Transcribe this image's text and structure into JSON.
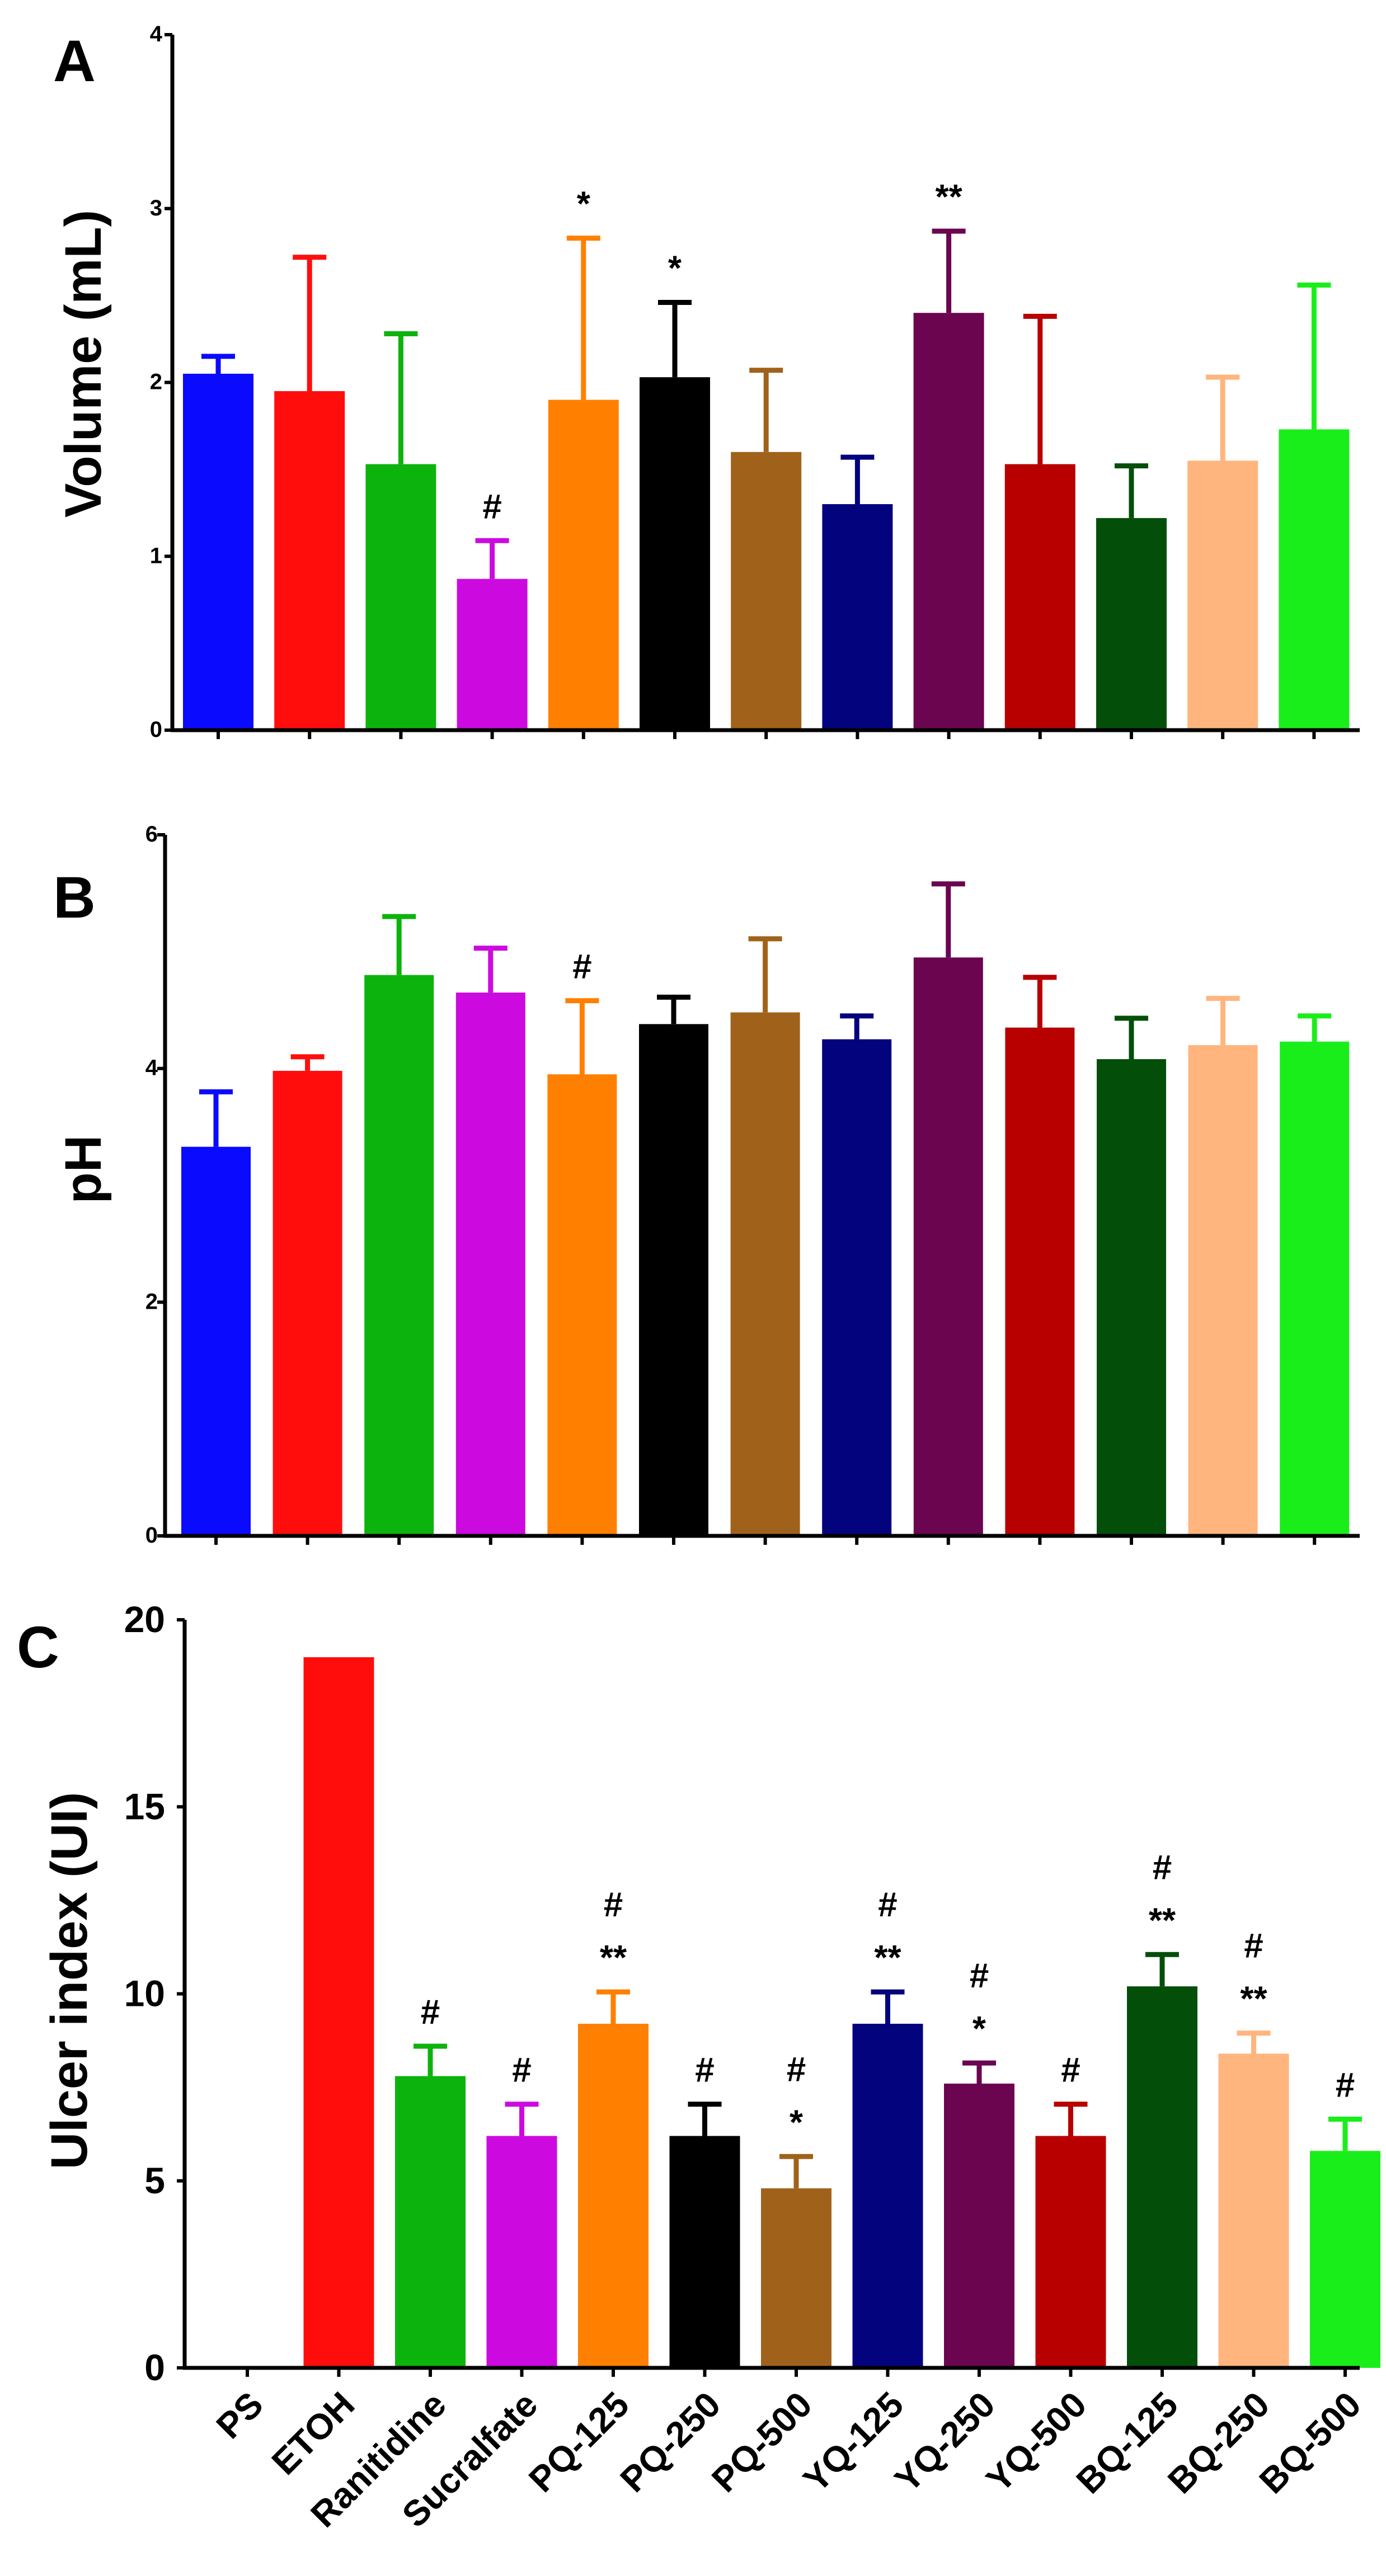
{
  "chart_data": [
    {
      "panel": "A",
      "type": "bar",
      "ylabel": "Volume (mL)",
      "ylim": [
        0,
        4
      ],
      "yticks": [
        "0",
        "1",
        "2",
        "3",
        "4"
      ],
      "categories": [
        "PS",
        "ETOH",
        "Ranitidine",
        "Sucralfate",
        "PQ-125",
        "PQ-250",
        "PQ-500",
        "YQ-125",
        "YQ-250",
        "YQ-500",
        "BQ-125",
        "BQ-250",
        "BQ-500"
      ],
      "values": [
        2.05,
        1.95,
        1.53,
        0.87,
        1.9,
        2.03,
        1.6,
        1.3,
        2.4,
        1.53,
        1.22,
        1.55,
        1.73
      ],
      "errors": [
        0.1,
        0.77,
        0.75,
        0.22,
        0.93,
        0.43,
        0.47,
        0.27,
        0.47,
        0.85,
        0.3,
        0.48,
        0.83
      ],
      "annotations": [
        {
          "category": "Sucralfate",
          "marks": [
            "#"
          ]
        },
        {
          "category": "PQ-125",
          "marks": [
            "*"
          ]
        },
        {
          "category": "PQ-250",
          "marks": [
            "*"
          ]
        },
        {
          "category": "YQ-250",
          "marks": [
            "**"
          ]
        }
      ]
    },
    {
      "panel": "B",
      "type": "bar",
      "ylabel": "pH",
      "ylim": [
        0,
        6
      ],
      "yticks": [
        "0",
        "2",
        "4",
        "6"
      ],
      "categories": [
        "PS",
        "ETOH",
        "Ranitidine",
        "Sucralfate",
        "PQ-125",
        "PQ-250",
        "PQ-500",
        "YQ-125",
        "YQ-250",
        "YQ-500",
        "BQ-125",
        "BQ-250",
        "BQ-500"
      ],
      "values": [
        3.33,
        3.98,
        4.8,
        4.65,
        3.95,
        4.38,
        4.48,
        4.25,
        4.95,
        4.35,
        4.08,
        4.2,
        4.23
      ],
      "errors": [
        0.47,
        0.12,
        0.5,
        0.38,
        0.63,
        0.23,
        0.63,
        0.2,
        0.63,
        0.43,
        0.35,
        0.4,
        0.22
      ],
      "annotations": [
        {
          "category": "PQ-125",
          "marks": [
            "#"
          ]
        }
      ]
    },
    {
      "panel": "C",
      "type": "bar",
      "ylabel": "Ulcer index (UI)",
      "ylim": [
        0,
        20
      ],
      "yticks": [
        "0",
        "5",
        "10",
        "15",
        "20"
      ],
      "categories": [
        "PS",
        "ETOH",
        "Ranitidine",
        "Sucralfate",
        "PQ-125",
        "PQ-250",
        "PQ-500",
        "YQ-125",
        "YQ-250",
        "YQ-500",
        "BQ-125",
        "BQ-250",
        "BQ-500"
      ],
      "values": [
        0,
        19,
        7.8,
        6.2,
        9.2,
        6.2,
        4.8,
        9.2,
        7.6,
        6.2,
        10.2,
        8.4,
        5.8
      ],
      "errors": [
        0,
        0,
        0.8,
        0.85,
        0.85,
        0.85,
        0.85,
        0.85,
        0.55,
        0.85,
        0.85,
        0.55,
        0.85
      ],
      "annotations": [
        {
          "category": "Ranitidine",
          "marks": [
            "#"
          ]
        },
        {
          "category": "Sucralfate",
          "marks": [
            "#"
          ]
        },
        {
          "category": "PQ-125",
          "marks": [
            "**",
            "#"
          ]
        },
        {
          "category": "PQ-250",
          "marks": [
            "#"
          ]
        },
        {
          "category": "PQ-500",
          "marks": [
            "*",
            "#"
          ]
        },
        {
          "category": "YQ-125",
          "marks": [
            "**",
            "#"
          ]
        },
        {
          "category": "YQ-250",
          "marks": [
            "*",
            "#"
          ]
        },
        {
          "category": "YQ-500",
          "marks": [
            "#"
          ]
        },
        {
          "category": "BQ-125",
          "marks": [
            "**",
            "#"
          ]
        },
        {
          "category": "BQ-250",
          "marks": [
            "**",
            "#"
          ]
        },
        {
          "category": "BQ-500",
          "marks": [
            "#"
          ]
        }
      ]
    }
  ],
  "colors": {
    "PS": "#0a0aff",
    "ETOH": "#ff0d0d",
    "Ranitidine": "#0db30d",
    "Sucralfate": "#cc0ae0",
    "PQ-125": "#ff8000",
    "PQ-250": "#000000",
    "PQ-500": "#a0621a",
    "YQ-125": "#03037d",
    "YQ-250": "#6b0550",
    "YQ-500": "#b80000",
    "BQ-125": "#034f09",
    "BQ-250": "#ffb57d",
    "BQ-500": "#1aee1a"
  }
}
